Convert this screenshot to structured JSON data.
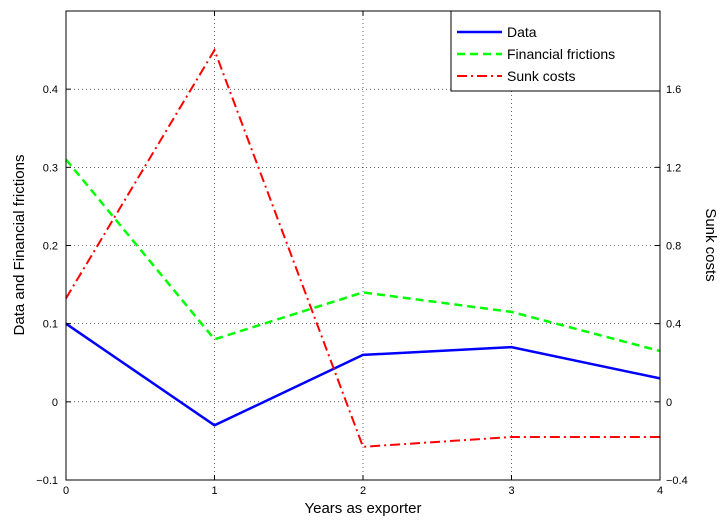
{
  "chart_data": {
    "type": "line",
    "x": [
      0,
      1,
      2,
      3,
      4
    ],
    "xlabel": "Years as exporter",
    "ylabel_left": "Data and Financial frictions",
    "ylabel_right": "Sunk costs",
    "xlim": [
      0,
      4
    ],
    "ylim_left": [
      -0.1,
      0.5
    ],
    "ylim_right": [
      -0.4,
      2.0
    ],
    "xticks": [
      "0",
      "1",
      "2",
      "3",
      "4"
    ],
    "yticks_left": [
      "−0.1",
      "0",
      "0.1",
      "0.2",
      "0.3",
      "0.4"
    ],
    "yticks_left_values": [
      -0.1,
      0,
      0.1,
      0.2,
      0.3,
      0.4
    ],
    "yticks_right": [
      "−0.4",
      "0",
      "0.4",
      "0.8",
      "1.2",
      "1.6"
    ],
    "yticks_right_values": [
      -0.4,
      0,
      0.4,
      0.8,
      1.2,
      1.6
    ],
    "grid": true,
    "legend_position": "top-right",
    "series": [
      {
        "name": "Data",
        "axis": "left",
        "color": "#0000ff",
        "style": "solid",
        "values": [
          0.1,
          -0.03,
          0.06,
          0.07,
          0.03
        ]
      },
      {
        "name": "Financial frictions",
        "axis": "left",
        "color": "#00ff00",
        "style": "dashed",
        "values": [
          0.31,
          0.08,
          0.14,
          0.115,
          0.065
        ]
      },
      {
        "name": "Sunk costs",
        "axis": "right",
        "color": "#ff0000",
        "style": "dashdot",
        "values": [
          0.53,
          1.8,
          -0.23,
          -0.18,
          -0.18
        ]
      }
    ]
  }
}
